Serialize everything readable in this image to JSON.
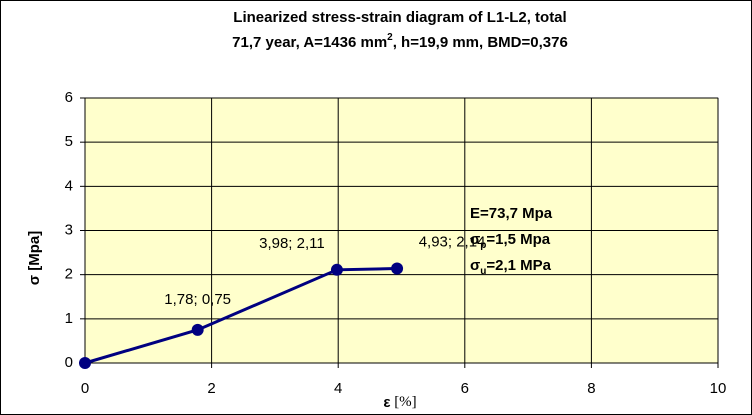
{
  "chart_data": {
    "type": "line",
    "title": [
      [
        {
          "text": "Linearized stress-strain diagram of L1-L2, total"
        }
      ],
      [
        {
          "text": "71,7 year, A=1436 mm"
        },
        {
          "text": "2",
          "sup": true
        },
        {
          "text": ", h=19,9 mm, BMD=0,376"
        }
      ]
    ],
    "x": [
      0,
      1.78,
      3.98,
      4.93
    ],
    "series": [
      {
        "color": "#000080",
        "values": [
          0,
          0.75,
          2.11,
          2.14
        ],
        "value_labels": [
          null,
          "1,78; 0,75",
          "3,98; 2,11",
          "4,93; 2,14"
        ]
      }
    ],
    "xlim": [
      0,
      10
    ],
    "xticks": [
      0,
      2,
      4,
      6,
      8,
      10
    ],
    "ylim": [
      0,
      6
    ],
    "yticks": [
      0,
      1,
      2,
      3,
      4,
      5,
      6
    ],
    "grid": true,
    "plot_background": "#ffffcc",
    "x_label": [
      {
        "text": "ε",
        "bold": true
      },
      {
        "text": " [%]",
        "serif": true
      }
    ],
    "y_label": "σ [Mpa]",
    "annotation": [
      [
        {
          "text": "E=73,7 Mpa"
        }
      ],
      [
        {
          "text": "σ"
        },
        {
          "text": "p",
          "sub": true
        },
        {
          "text": "=1,5 Mpa"
        }
      ],
      [
        {
          "text": "σ"
        },
        {
          "text": "u",
          "sub": true
        },
        {
          "text": "=2,1 MPa"
        }
      ]
    ]
  }
}
